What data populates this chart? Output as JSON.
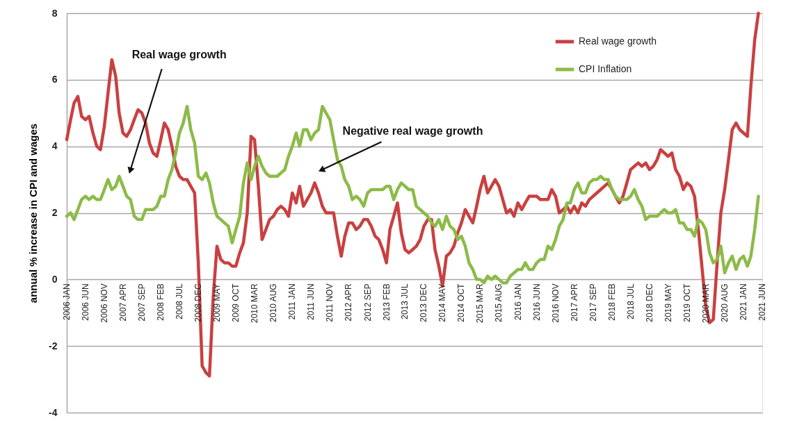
{
  "chart_data": {
    "type": "line",
    "ylabel": "annual % increase in CPI and wages",
    "x": [
      "2006-01",
      "2006-02",
      "2006-03",
      "2006-04",
      "2006-05",
      "2006-06",
      "2006-07",
      "2006-08",
      "2006-09",
      "2006-10",
      "2006-11",
      "2006-12",
      "2007-01",
      "2007-02",
      "2007-03",
      "2007-04",
      "2007-05",
      "2007-06",
      "2007-07",
      "2007-08",
      "2007-09",
      "2007-10",
      "2007-11",
      "2007-12",
      "2008-01",
      "2008-02",
      "2008-03",
      "2008-04",
      "2008-05",
      "2008-06",
      "2008-07",
      "2008-08",
      "2008-09",
      "2008-10",
      "2008-11",
      "2008-12",
      "2009-01",
      "2009-02",
      "2009-03",
      "2009-04",
      "2009-05",
      "2009-06",
      "2009-07",
      "2009-08",
      "2009-09",
      "2009-10",
      "2009-11",
      "2009-12",
      "2010-01",
      "2010-02",
      "2010-03",
      "2010-04",
      "2010-05",
      "2010-06",
      "2010-07",
      "2010-08",
      "2010-09",
      "2010-10",
      "2010-11",
      "2010-12",
      "2011-01",
      "2011-02",
      "2011-03",
      "2011-04",
      "2011-05",
      "2011-06",
      "2011-07",
      "2011-08",
      "2011-09",
      "2011-10",
      "2011-11",
      "2011-12",
      "2012-01",
      "2012-02",
      "2012-03",
      "2012-04",
      "2012-05",
      "2012-06",
      "2012-07",
      "2012-08",
      "2012-09",
      "2012-10",
      "2012-11",
      "2012-12",
      "2013-01",
      "2013-02",
      "2013-03",
      "2013-04",
      "2013-05",
      "2013-06",
      "2013-07",
      "2013-08",
      "2013-09",
      "2013-10",
      "2013-11",
      "2013-12",
      "2014-01",
      "2014-02",
      "2014-03",
      "2014-04",
      "2014-05",
      "2014-06",
      "2014-07",
      "2014-08",
      "2014-09",
      "2014-10",
      "2014-11",
      "2014-12",
      "2015-01",
      "2015-02",
      "2015-03",
      "2015-04",
      "2015-05",
      "2015-06",
      "2015-07",
      "2015-08",
      "2015-09",
      "2015-10",
      "2015-11",
      "2015-12",
      "2016-01",
      "2016-02",
      "2016-03",
      "2016-04",
      "2016-05",
      "2016-06",
      "2016-07",
      "2016-08",
      "2016-09",
      "2016-10",
      "2016-11",
      "2016-12",
      "2017-01",
      "2017-02",
      "2017-03",
      "2017-04",
      "2017-05",
      "2017-06",
      "2017-07",
      "2017-08",
      "2017-09",
      "2017-10",
      "2017-11",
      "2017-12",
      "2018-01",
      "2018-02",
      "2018-03",
      "2018-04",
      "2018-05",
      "2018-06",
      "2018-07",
      "2018-08",
      "2018-09",
      "2018-10",
      "2018-11",
      "2018-12",
      "2019-01",
      "2019-02",
      "2019-03",
      "2019-04",
      "2019-05",
      "2019-06",
      "2019-07",
      "2019-08",
      "2019-09",
      "2019-10",
      "2019-11",
      "2019-12",
      "2020-01",
      "2020-02",
      "2020-03",
      "2020-04",
      "2020-05",
      "2020-06",
      "2020-07",
      "2020-08",
      "2020-09",
      "2020-10",
      "2020-11",
      "2020-12",
      "2021-01",
      "2021-02",
      "2021-03",
      "2021-04",
      "2021-05"
    ],
    "series": [
      {
        "name": "Real wage growth",
        "color": "#c94040",
        "values": [
          4.2,
          4.8,
          5.3,
          5.5,
          4.9,
          4.8,
          4.9,
          4.4,
          4.0,
          3.9,
          4.6,
          5.6,
          6.6,
          6.1,
          5.0,
          4.4,
          4.3,
          4.5,
          4.8,
          5.1,
          5.0,
          4.7,
          4.1,
          3.8,
          3.7,
          4.2,
          4.7,
          4.5,
          4.0,
          3.4,
          3.1,
          3.0,
          3.0,
          2.8,
          2.6,
          0.5,
          -2.6,
          -2.8,
          -2.9,
          -0.5,
          1.0,
          0.6,
          0.5,
          0.5,
          0.4,
          0.4,
          0.8,
          1.1,
          2.0,
          4.3,
          4.2,
          2.8,
          1.2,
          1.5,
          1.8,
          1.9,
          2.1,
          2.2,
          2.1,
          1.9,
          2.6,
          2.3,
          2.8,
          2.2,
          2.4,
          2.6,
          2.9,
          2.6,
          2.2,
          2.0,
          2.0,
          2.0,
          1.3,
          0.7,
          1.3,
          1.7,
          1.7,
          1.5,
          1.6,
          1.8,
          1.8,
          1.6,
          1.3,
          1.2,
          0.9,
          0.5,
          1.5,
          1.9,
          2.3,
          1.4,
          0.9,
          0.8,
          0.9,
          1.0,
          1.2,
          1.6,
          1.8,
          1.8,
          0.9,
          0.4,
          -0.2,
          0.7,
          0.8,
          1.0,
          1.4,
          1.7,
          2.1,
          1.9,
          1.7,
          2.2,
          2.7,
          3.1,
          2.6,
          2.8,
          3.0,
          2.8,
          2.4,
          2.0,
          2.1,
          1.9,
          2.3,
          2.1,
          2.3,
          2.5,
          2.5,
          2.5,
          2.4,
          2.4,
          2.4,
          2.7,
          2.5,
          2.0,
          2.1,
          2.2,
          2.0,
          2.2,
          2.0,
          2.3,
          2.2,
          2.4,
          2.5,
          2.6,
          2.7,
          2.8,
          2.9,
          2.7,
          2.5,
          2.3,
          2.5,
          2.9,
          3.3,
          3.4,
          3.5,
          3.4,
          3.5,
          3.3,
          3.4,
          3.6,
          3.9,
          3.8,
          3.7,
          3.8,
          3.3,
          3.1,
          2.7,
          2.9,
          2.8,
          2.5,
          1.5,
          0.3,
          -0.8,
          -1.3,
          -1.2,
          0.5,
          2.0,
          2.7,
          3.6,
          4.5,
          4.7,
          4.5,
          4.4,
          4.3,
          5.8,
          7.2,
          8.0
        ]
      },
      {
        "name": "CPI Inflation",
        "color": "#8cbb48",
        "values": [
          1.9,
          2.0,
          1.8,
          2.1,
          2.4,
          2.5,
          2.4,
          2.5,
          2.4,
          2.4,
          2.7,
          3.0,
          2.7,
          2.8,
          3.1,
          2.8,
          2.5,
          2.4,
          1.9,
          1.8,
          1.8,
          2.1,
          2.1,
          2.1,
          2.2,
          2.5,
          2.5,
          3.0,
          3.3,
          3.8,
          4.4,
          4.7,
          5.2,
          4.5,
          4.1,
          3.1,
          3.0,
          3.2,
          2.9,
          2.3,
          1.9,
          1.8,
          1.7,
          1.6,
          1.1,
          1.5,
          1.9,
          2.9,
          3.5,
          3.0,
          3.4,
          3.7,
          3.4,
          3.2,
          3.1,
          3.1,
          3.1,
          3.2,
          3.3,
          3.7,
          4.0,
          4.4,
          4.0,
          4.5,
          4.5,
          4.2,
          4.4,
          4.5,
          5.2,
          5.0,
          4.8,
          4.2,
          3.6,
          3.4,
          3.0,
          2.8,
          2.4,
          2.5,
          2.4,
          2.2,
          2.6,
          2.7,
          2.7,
          2.7,
          2.7,
          2.8,
          2.8,
          2.4,
          2.7,
          2.9,
          2.8,
          2.7,
          2.7,
          2.2,
          2.1,
          2.0,
          1.9,
          1.7,
          1.6,
          1.8,
          1.5,
          1.9,
          1.6,
          1.5,
          1.2,
          1.3,
          1.0,
          0.5,
          0.3,
          0.0,
          0.0,
          -0.1,
          0.1,
          0.0,
          0.1,
          0.0,
          -0.1,
          -0.1,
          0.1,
          0.2,
          0.3,
          0.3,
          0.5,
          0.3,
          0.3,
          0.5,
          0.6,
          0.6,
          1.0,
          0.9,
          1.2,
          1.6,
          1.8,
          2.3,
          2.3,
          2.7,
          2.9,
          2.6,
          2.6,
          2.9,
          3.0,
          3.0,
          3.1,
          3.0,
          3.0,
          2.7,
          2.5,
          2.4,
          2.4,
          2.4,
          2.5,
          2.7,
          2.4,
          2.2,
          1.8,
          1.9,
          1.9,
          1.9,
          2.0,
          2.1,
          2.0,
          2.0,
          2.1,
          1.7,
          1.7,
          1.5,
          1.5,
          1.3,
          1.8,
          1.7,
          1.5,
          0.8,
          0.5,
          0.6,
          1.0,
          0.2,
          0.5,
          0.7,
          0.3,
          0.6,
          0.7,
          0.4,
          0.7,
          1.5,
          2.5
        ]
      }
    ],
    "xlim": [
      "2006-01",
      "2021-06"
    ],
    "xticks": [
      {
        "value": "2006-01",
        "label": "2006 JAN"
      },
      {
        "value": "2006-06",
        "label": "2006 JUN"
      },
      {
        "value": "2006-11",
        "label": "2006 NOV"
      },
      {
        "value": "2007-04",
        "label": "2007 APR"
      },
      {
        "value": "2007-09",
        "label": "2007 SEP"
      },
      {
        "value": "2008-02",
        "label": "2008 FEB"
      },
      {
        "value": "2008-07",
        "label": "2008 JUL"
      },
      {
        "value": "2008-12",
        "label": "2008 DEC"
      },
      {
        "value": "2009-05",
        "label": "2009 MAY"
      },
      {
        "value": "2009-10",
        "label": "2009 OCT"
      },
      {
        "value": "2010-03",
        "label": "2010 MAR"
      },
      {
        "value": "2010-08",
        "label": "2010 AUG"
      },
      {
        "value": "2011-01",
        "label": "2011 JAN"
      },
      {
        "value": "2011-06",
        "label": "2011 JUN"
      },
      {
        "value": "2011-11",
        "label": "2011 NOV"
      },
      {
        "value": "2012-04",
        "label": "2012 APR"
      },
      {
        "value": "2012-09",
        "label": "2012 SEP"
      },
      {
        "value": "2013-02",
        "label": "2013 FEB"
      },
      {
        "value": "2013-07",
        "label": "2013 JUL"
      },
      {
        "value": "2013-12",
        "label": "2013 DEC"
      },
      {
        "value": "2014-05",
        "label": "2014 MAY"
      },
      {
        "value": "2014-10",
        "label": "2014 OCT"
      },
      {
        "value": "2015-03",
        "label": "2015 MAR"
      },
      {
        "value": "2015-08",
        "label": "2015 AUG"
      },
      {
        "value": "2016-01",
        "label": "2016 JAN"
      },
      {
        "value": "2016-06",
        "label": "2016 JUN"
      },
      {
        "value": "2016-11",
        "label": "2016 NOV"
      },
      {
        "value": "2017-04",
        "label": "2017 APR"
      },
      {
        "value": "2017-09",
        "label": "2017 SEP"
      },
      {
        "value": "2018-02",
        "label": "2018 FEB"
      },
      {
        "value": "2018-07",
        "label": "2018 JUL"
      },
      {
        "value": "2018-12",
        "label": "2018 DEC"
      },
      {
        "value": "2019-05",
        "label": "2019 MAY"
      },
      {
        "value": "2019-10",
        "label": "2019 OCT"
      },
      {
        "value": "2020-03",
        "label": "2020 MAR"
      },
      {
        "value": "2020-08",
        "label": "2020 AUG"
      },
      {
        "value": "2021-01",
        "label": "2021 JAN"
      },
      {
        "value": "2021-06",
        "label": "2021 JUN"
      }
    ],
    "ylim": [
      -4,
      8
    ],
    "yticks": [
      -4,
      -2,
      0,
      2,
      4,
      6,
      8
    ],
    "grid": "y",
    "legend": "top right",
    "line_style": "solid",
    "annotations": [
      {
        "text": "Real wage growth",
        "x": "2007-06",
        "y": 3.3
      },
      {
        "text": "Negative real wage growth",
        "x": "2011-09",
        "y": 3.3
      }
    ]
  }
}
